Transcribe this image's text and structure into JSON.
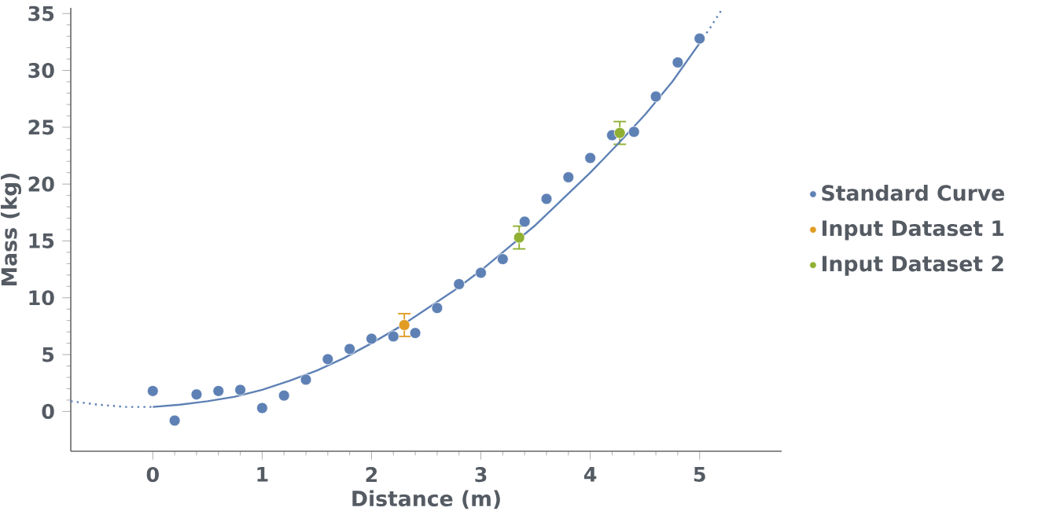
{
  "chart_data": {
    "type": "scatter",
    "xlabel": "Distance  (m)",
    "ylabel": "Mass  (kg)",
    "xlim": [
      -0.75,
      5.75
    ],
    "ylim": [
      -3.5,
      35.5
    ],
    "xticks": [
      0,
      1,
      2,
      3,
      4,
      5
    ],
    "yticks": [
      0,
      5,
      10,
      15,
      20,
      25,
      30,
      35
    ],
    "grid": false,
    "legend": "right",
    "marker": "circle",
    "series": [
      {
        "name": "Standard Curve",
        "color": "#5e81b5",
        "x": [
          0,
          0.2,
          0.4,
          0.6,
          0.8,
          1.0,
          1.2,
          1.4,
          1.6,
          1.8,
          2.0,
          2.2,
          2.4,
          2.6,
          2.8,
          3.0,
          3.2,
          3.4,
          3.6,
          3.8,
          4.0,
          4.2,
          4.4,
          4.6,
          4.8,
          5.0
        ],
        "values": [
          1.8,
          -0.8,
          1.5,
          1.8,
          1.9,
          0.3,
          1.4,
          2.8,
          4.6,
          5.5,
          6.4,
          6.6,
          6.9,
          9.1,
          11.2,
          12.2,
          13.4,
          16.7,
          18.7,
          20.6,
          22.3,
          24.3,
          24.6,
          27.7,
          30.7,
          32.8
        ]
      },
      {
        "name": "Input Dataset 1",
        "color": "#e19c24",
        "x": [
          2.3
        ],
        "values": [
          7.6
        ],
        "errors": [
          1.0
        ]
      },
      {
        "name": "Input Dataset 2",
        "color": "#8fb032",
        "x": [
          3.35,
          4.27
        ],
        "values": [
          15.3,
          24.5
        ],
        "errors": [
          1.0,
          1.0
        ]
      },
      {
        "type": "line",
        "marker": "none",
        "line_style": "dotted",
        "color": "#5e81b5",
        "x": [
          -0.75,
          -0.5,
          -0.25,
          0
        ],
        "values": [
          0.9,
          0.6,
          0.4,
          0.4
        ]
      },
      {
        "type": "line",
        "marker": "none",
        "line_style": "solid",
        "color": "#5e81b5",
        "x": [
          0,
          0.25,
          0.5,
          0.75,
          1,
          1.25,
          1.5,
          1.75,
          2,
          2.25,
          2.5,
          2.75,
          3,
          3.25,
          3.5,
          3.75,
          4,
          4.25,
          4.5,
          4.75,
          5
        ],
        "values": [
          0.4,
          0.6,
          0.9,
          1.3,
          1.9,
          2.7,
          3.6,
          4.7,
          6.0,
          7.4,
          9.0,
          10.6,
          12.4,
          14.4,
          16.4,
          18.7,
          21.0,
          23.5,
          26.1,
          29.0,
          32.4
        ]
      },
      {
        "type": "line",
        "marker": "none",
        "line_style": "dotted",
        "color": "#5e81b5",
        "x": [
          5,
          5.1,
          5.2
        ],
        "values": [
          32.4,
          33.8,
          35.3
        ]
      }
    ]
  }
}
